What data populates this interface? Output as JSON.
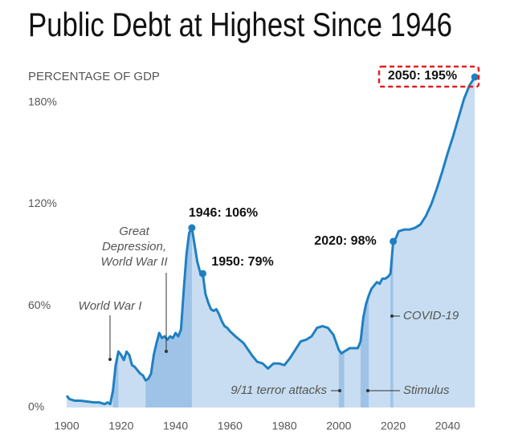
{
  "chart_data": {
    "type": "area",
    "title": "Public Debt at Highest Since 1946",
    "y_label": "PERCENTAGE OF GDP",
    "color": "#1f80c1",
    "fill_color": "#c8ddf1",
    "shade_color": "#9ec3e7",
    "xlim": [
      1896,
      2052
    ],
    "ylim": [
      0,
      195
    ],
    "xticks": [
      1900,
      1920,
      1940,
      1960,
      1980,
      2000,
      2020,
      2040
    ],
    "yticks": [
      {
        "value": 0,
        "label": "0%"
      },
      {
        "value": 60,
        "label": "60%"
      },
      {
        "value": 120,
        "label": "120%"
      },
      {
        "value": 180,
        "label": "180%"
      }
    ],
    "x": [
      1900,
      1901,
      1903,
      1905,
      1910,
      1912,
      1914,
      1915,
      1916,
      1917,
      1918,
      1919,
      1920,
      1921,
      1922,
      1923,
      1924,
      1925,
      1926,
      1927,
      1928,
      1929,
      1930,
      1931,
      1932,
      1933,
      1934,
      1935,
      1936,
      1937,
      1938,
      1939,
      1940,
      1941,
      1942,
      1943,
      1944,
      1945,
      1946,
      1947,
      1948,
      1949,
      1950,
      1951,
      1952,
      1953,
      1954,
      1955,
      1956,
      1957,
      1958,
      1959,
      1960,
      1962,
      1965,
      1968,
      1970,
      1972,
      1974,
      1976,
      1978,
      1980,
      1982,
      1984,
      1986,
      1988,
      1990,
      1992,
      1994,
      1996,
      1998,
      2000,
      2001,
      2002,
      2004,
      2006,
      2007,
      2008,
      2009,
      2010,
      2011,
      2012,
      2013,
      2014,
      2015,
      2016,
      2017,
      2018,
      2019,
      2020,
      2021,
      2022,
      2024,
      2026,
      2028,
      2030,
      2032,
      2034,
      2036,
      2038,
      2040,
      2042,
      2044,
      2046,
      2048,
      2050
    ],
    "values": [
      7,
      5,
      4,
      4,
      3,
      3,
      2,
      3,
      2,
      10,
      25,
      33,
      31,
      28,
      33,
      31,
      25,
      24,
      22,
      20,
      19,
      16,
      17,
      20,
      31,
      38,
      44,
      41,
      42,
      40,
      42,
      41,
      44,
      42,
      46,
      69,
      90,
      103,
      106,
      96,
      86,
      80,
      79,
      67,
      62,
      58,
      57,
      58,
      55,
      51,
      48,
      47,
      45,
      42,
      38,
      31,
      27,
      26,
      23,
      26,
      26,
      25,
      29,
      34,
      39,
      40,
      42,
      47,
      48,
      47,
      43,
      34,
      32,
      33,
      35,
      35,
      35,
      39,
      53,
      61,
      66,
      70,
      72,
      74,
      73,
      76,
      76,
      77,
      79,
      98,
      100,
      104,
      105,
      105,
      106,
      108,
      113,
      120,
      129,
      139,
      150,
      160,
      171,
      182,
      190,
      195
    ],
    "points": [
      {
        "x": 1946,
        "label": "1946: 106%"
      },
      {
        "x": 1950,
        "label": "1950: 79%"
      },
      {
        "x": 2020,
        "label": "2020: 98%"
      },
      {
        "x": 2050,
        "label": "2050: 195%"
      }
    ],
    "periods": [
      {
        "start": 1917,
        "end": 1919,
        "label": [
          "World War I"
        ]
      },
      {
        "start": 1929,
        "end": 1946,
        "label": [
          "Great",
          "Depression,",
          "World War II"
        ]
      },
      {
        "start": 2000,
        "end": 2002,
        "label": [
          "9/11 terror attacks"
        ]
      },
      {
        "start": 2008,
        "end": 2011,
        "label": [
          "Stimulus"
        ]
      },
      {
        "start": 2019,
        "end": 2020,
        "label": [
          "COVID-19"
        ]
      }
    ]
  }
}
